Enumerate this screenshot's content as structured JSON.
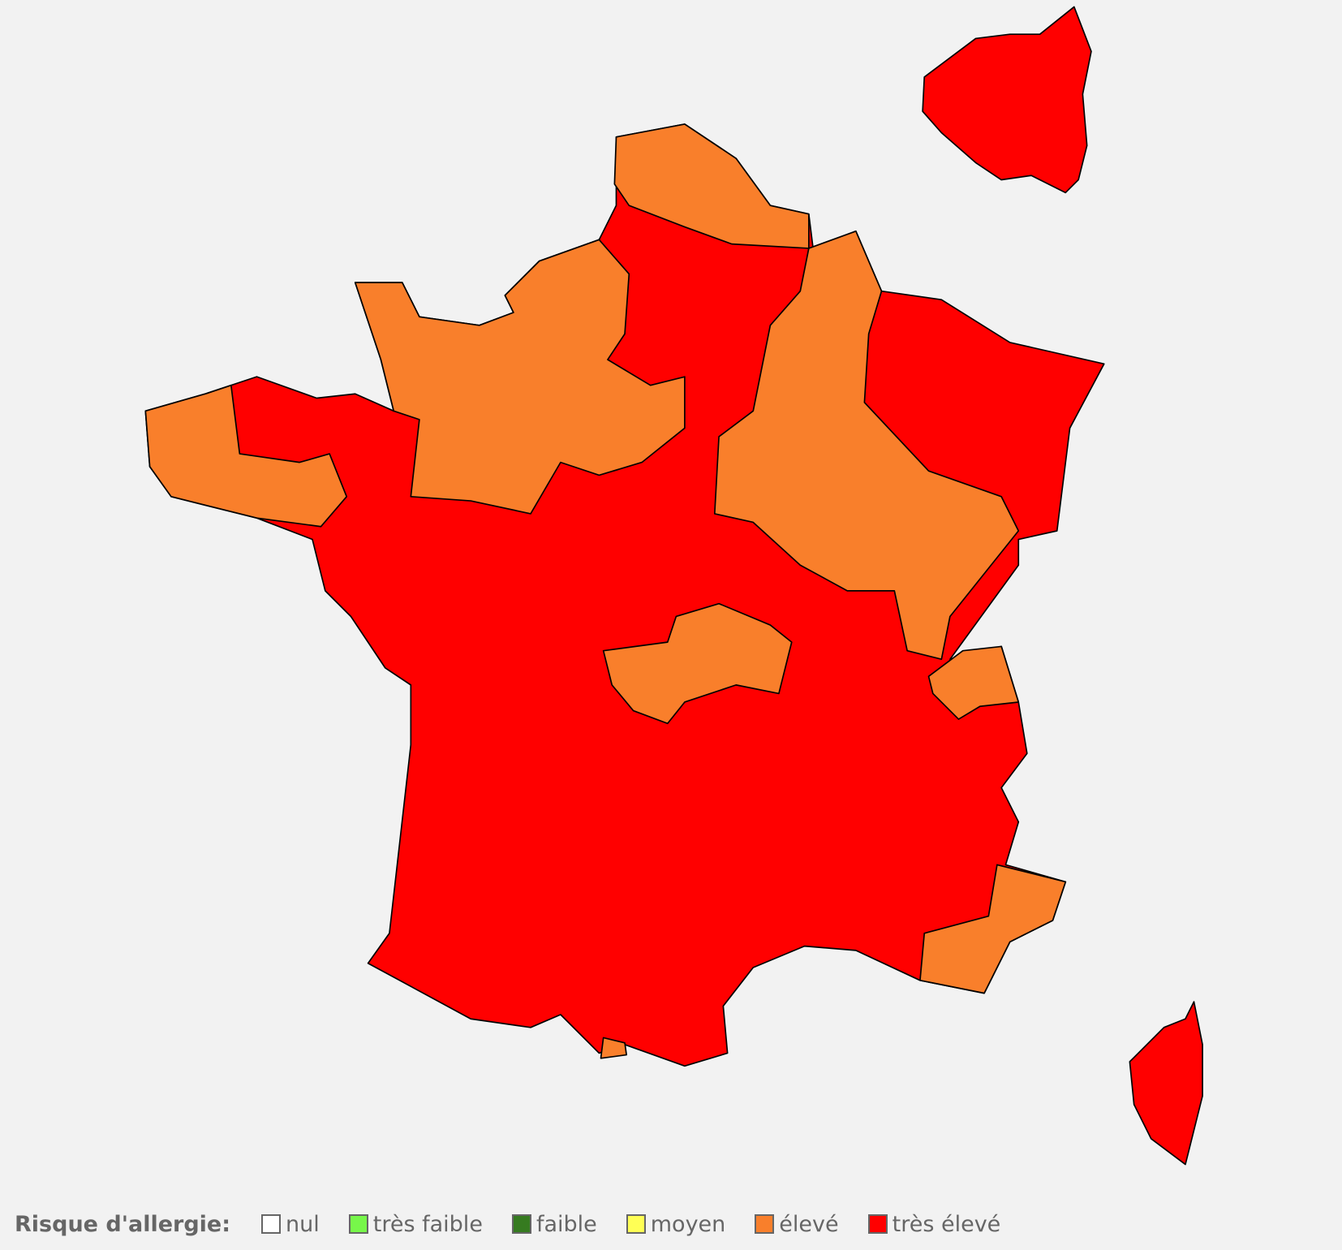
{
  "legend": {
    "title": "Risque d'allergie:",
    "items": [
      {
        "label": "nul",
        "color": "#ffffff"
      },
      {
        "label": "très faible",
        "color": "#77f74a"
      },
      {
        "label": "faible",
        "color": "#367b20"
      },
      {
        "label": "moyen",
        "color": "#ffff55"
      },
      {
        "label": "élevé",
        "color": "#f97f2b"
      },
      {
        "label": "très élevé",
        "color": "#ff0000"
      }
    ]
  },
  "map": {
    "dominant_level": "très élevé",
    "regions_eleve": [
      "Nord / Pas-de-Calais",
      "Normandie / Centre-nord",
      "Bretagne ouest",
      "Grand Est / Bourgogne-Franche-Comté",
      "Savoie",
      "Limousin / Auvergne",
      "Provence-Alpes-Côte d'Azur",
      "Pyrénées-Orientales (partie)"
    ],
    "insets": [
      "Île-de-France",
      "Corse"
    ]
  }
}
